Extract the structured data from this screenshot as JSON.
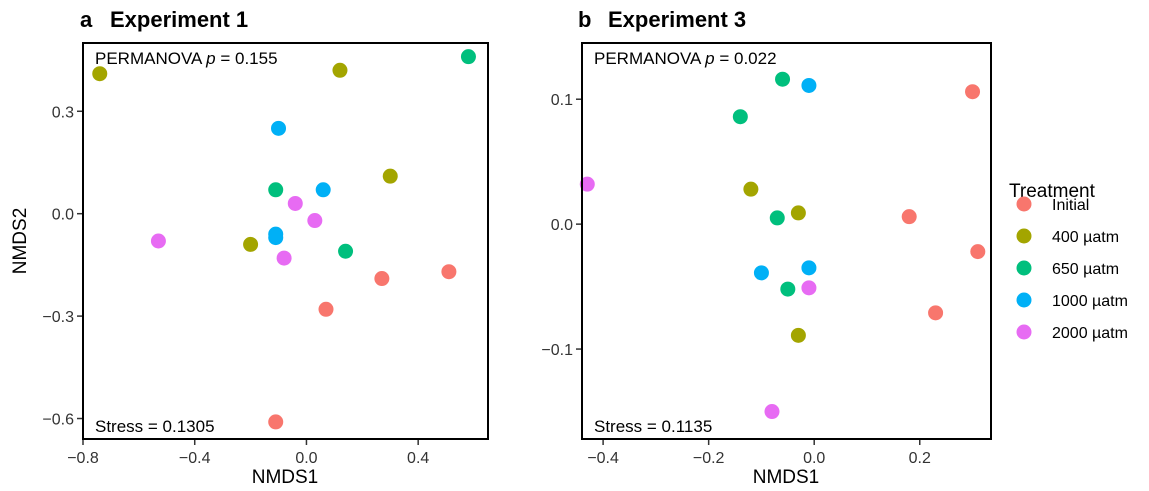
{
  "legend": {
    "title": "Treatment",
    "items": [
      {
        "label": "Initial",
        "color": "#F8766D"
      },
      {
        "label": "400 µatm",
        "color": "#A3A500"
      },
      {
        "label": "650 µatm",
        "color": "#00BF7D"
      },
      {
        "label": "1000 µatm",
        "color": "#00B0F6"
      },
      {
        "label": "2000 µatm",
        "color": "#E76BF3"
      }
    ]
  },
  "chart_data": [
    {
      "type": "scatter",
      "panel_letter": "a",
      "title": "Experiment 1",
      "xlabel": "NMDS1",
      "ylabel": "NMDS2",
      "xlim": [
        -0.8,
        0.65
      ],
      "ylim": [
        -0.66,
        0.5
      ],
      "xticks": [
        -0.8,
        -0.4,
        0.0,
        0.4
      ],
      "xtick_labels": [
        "−0.8",
        "−0.4",
        "0.0",
        "0.4"
      ],
      "yticks": [
        0.3,
        0.0,
        -0.3,
        -0.6
      ],
      "ytick_labels": [
        "0.3",
        "0.0",
        "−0.3",
        "−0.6"
      ],
      "annotation_top": {
        "prefix": "PERMANOVA ",
        "italic": "p",
        "suffix": " = 0.155"
      },
      "annotation_bottom": "Stress = 0.1305",
      "grid": false,
      "series": [
        {
          "name": "Initial",
          "x": [
            0.27,
            0.51,
            0.07,
            -0.11
          ],
          "y": [
            -0.19,
            -0.17,
            -0.28,
            -0.61
          ]
        },
        {
          "name": "400 µatm",
          "x": [
            -0.74,
            0.12,
            0.3,
            -0.2
          ],
          "y": [
            0.41,
            0.42,
            0.11,
            -0.09
          ]
        },
        {
          "name": "650 µatm",
          "x": [
            0.58,
            -0.11,
            0.14
          ],
          "y": [
            0.46,
            0.07,
            -0.11
          ]
        },
        {
          "name": "1000 µatm",
          "x": [
            -0.1,
            0.06,
            -0.11,
            -0.11
          ],
          "y": [
            0.25,
            0.07,
            -0.06,
            -0.07
          ]
        },
        {
          "name": "2000 µatm",
          "x": [
            -0.53,
            -0.04,
            0.03,
            -0.08
          ],
          "y": [
            -0.08,
            0.03,
            -0.02,
            -0.13
          ]
        }
      ]
    },
    {
      "type": "scatter",
      "panel_letter": "b",
      "title": "Experiment 3",
      "xlabel": "NMDS1",
      "ylabel": "",
      "xlim": [
        -0.44,
        0.335
      ],
      "ylim": [
        -0.172,
        0.145
      ],
      "xticks": [
        -0.4,
        -0.2,
        0.0,
        0.2
      ],
      "xtick_labels": [
        "−0.4",
        "−0.2",
        "0.0",
        "0.2"
      ],
      "yticks": [
        0.1,
        0.0,
        -0.1
      ],
      "ytick_labels": [
        "0.1",
        "0.0",
        "−0.1"
      ],
      "annotation_top": {
        "prefix": "PERMANOVA ",
        "italic": "p",
        "suffix": " = 0.022"
      },
      "annotation_bottom": "Stress = 0.1135",
      "grid": false,
      "series": [
        {
          "name": "Initial",
          "x": [
            0.3,
            0.18,
            0.31,
            0.23
          ],
          "y": [
            0.106,
            0.006,
            -0.022,
            -0.071
          ]
        },
        {
          "name": "400 µatm",
          "x": [
            -0.12,
            -0.03,
            -0.03
          ],
          "y": [
            0.028,
            0.009,
            -0.089
          ]
        },
        {
          "name": "650 µatm",
          "x": [
            -0.14,
            -0.06,
            -0.07,
            -0.05
          ],
          "y": [
            0.086,
            0.116,
            0.005,
            -0.052
          ]
        },
        {
          "name": "1000 µatm",
          "x": [
            -0.01,
            -0.1,
            -0.01
          ],
          "y": [
            0.111,
            -0.039,
            -0.035
          ]
        },
        {
          "name": "2000 µatm",
          "x": [
            -0.43,
            -0.01,
            -0.08
          ],
          "y": [
            0.032,
            -0.051,
            -0.15
          ]
        }
      ]
    }
  ]
}
